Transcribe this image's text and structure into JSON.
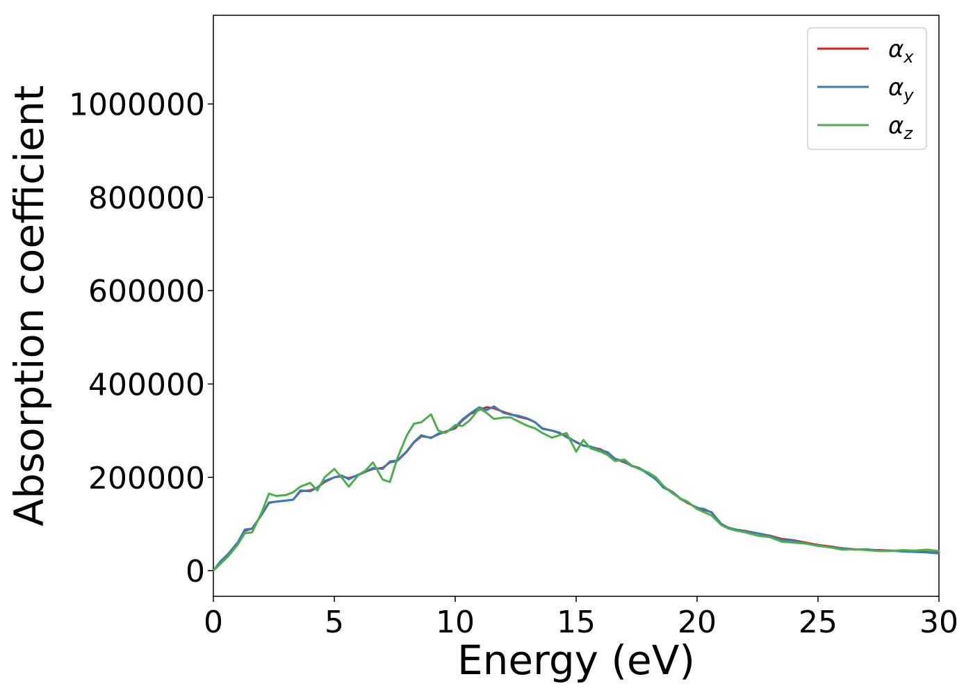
{
  "chart_data": {
    "type": "line",
    "title": "",
    "xlabel": "Energy (eV)",
    "ylabel": "Absorption coefficient",
    "xlim": [
      0,
      30
    ],
    "ylim": [
      -55000,
      1190000
    ],
    "xticks": [
      0,
      5,
      10,
      15,
      20,
      25,
      30
    ],
    "yticks": [
      0,
      200000,
      400000,
      600000,
      800000,
      1000000
    ],
    "xtick_labels": [
      "0",
      "5",
      "10",
      "15",
      "20",
      "25",
      "30"
    ],
    "ytick_labels": [
      "0",
      "200000",
      "400000",
      "600000",
      "800000",
      "1000000"
    ],
    "grid": false,
    "legend_position": "top-right",
    "series": [
      {
        "name": "α",
        "subscript": "x",
        "color": "#e41a1c",
        "x": [
          0,
          0.3,
          0.6,
          1.0,
          1.3,
          1.6,
          2.0,
          2.3,
          2.6,
          3.0,
          3.3,
          3.6,
          4.0,
          4.3,
          4.6,
          5.0,
          5.3,
          5.6,
          6.0,
          6.3,
          6.6,
          7.0,
          7.3,
          7.6,
          8.0,
          8.3,
          8.6,
          9.0,
          9.3,
          9.6,
          10.0,
          10.3,
          10.6,
          11.0,
          11.3,
          11.6,
          12.0,
          12.3,
          12.6,
          13.0,
          13.3,
          13.6,
          14.0,
          14.3,
          14.6,
          15.0,
          15.3,
          15.6,
          16.0,
          16.3,
          16.6,
          17.0,
          17.3,
          17.6,
          18.0,
          18.3,
          18.6,
          19.0,
          19.3,
          19.6,
          20.0,
          20.3,
          20.6,
          21.0,
          21.3,
          21.6,
          22.0,
          22.5,
          23.0,
          23.5,
          24.0,
          24.5,
          25.0,
          25.5,
          26.0,
          26.5,
          27.0,
          27.5,
          28.0,
          28.5,
          29.0,
          29.5,
          30.0
        ],
        "y": [
          0,
          20000,
          35000,
          60000,
          85000,
          90000,
          120000,
          145000,
          148000,
          150000,
          152000,
          170000,
          172000,
          178000,
          190000,
          200000,
          202000,
          198000,
          205000,
          212000,
          218000,
          220000,
          232000,
          235000,
          255000,
          275000,
          288000,
          285000,
          292000,
          298000,
          305000,
          322000,
          335000,
          345000,
          350000,
          348000,
          340000,
          335000,
          330000,
          325000,
          318000,
          305000,
          300000,
          295000,
          288000,
          275000,
          268000,
          265000,
          260000,
          252000,
          240000,
          232000,
          225000,
          220000,
          208000,
          195000,
          180000,
          168000,
          155000,
          145000,
          135000,
          130000,
          125000,
          100000,
          92000,
          88000,
          85000,
          80000,
          75000,
          68000,
          65000,
          60000,
          55000,
          52000,
          48000,
          46000,
          45000,
          44000,
          43000,
          42000,
          41000,
          40000,
          38000
        ]
      },
      {
        "name": "α",
        "subscript": "y",
        "color": "#377eb8",
        "x": [
          0,
          0.3,
          0.6,
          1.0,
          1.3,
          1.6,
          2.0,
          2.3,
          2.6,
          3.0,
          3.3,
          3.6,
          4.0,
          4.3,
          4.6,
          5.0,
          5.3,
          5.6,
          6.0,
          6.3,
          6.6,
          7.0,
          7.3,
          7.6,
          8.0,
          8.3,
          8.6,
          9.0,
          9.3,
          9.6,
          10.0,
          10.3,
          10.6,
          11.0,
          11.3,
          11.6,
          12.0,
          12.3,
          12.6,
          13.0,
          13.3,
          13.6,
          14.0,
          14.3,
          14.6,
          15.0,
          15.3,
          15.6,
          16.0,
          16.3,
          16.6,
          17.0,
          17.3,
          17.6,
          18.0,
          18.3,
          18.6,
          19.0,
          19.3,
          19.6,
          20.0,
          20.3,
          20.6,
          21.0,
          21.3,
          21.6,
          22.0,
          22.5,
          23.0,
          23.5,
          24.0,
          24.5,
          25.0,
          25.5,
          26.0,
          26.5,
          27.0,
          27.5,
          28.0,
          28.5,
          29.0,
          29.5,
          30.0
        ],
        "y": [
          0,
          20000,
          35000,
          60000,
          88000,
          90000,
          120000,
          146000,
          148000,
          150000,
          152000,
          172000,
          170000,
          178000,
          192000,
          200000,
          204000,
          196000,
          206000,
          212000,
          220000,
          218000,
          234000,
          236000,
          256000,
          276000,
          290000,
          284000,
          294000,
          296000,
          308000,
          324000,
          336000,
          350000,
          344000,
          352000,
          338000,
          334000,
          332000,
          326000,
          318000,
          304000,
          300000,
          296000,
          286000,
          276000,
          268000,
          266000,
          258000,
          254000,
          240000,
          234000,
          224000,
          220000,
          206000,
          196000,
          178000,
          168000,
          154000,
          146000,
          134000,
          132000,
          124000,
          100000,
          92000,
          88000,
          84000,
          80000,
          74000,
          66000,
          64000,
          58000,
          54000,
          50000,
          48000,
          45000,
          46000,
          43000,
          43000,
          41000,
          40000,
          39000,
          37000
        ]
      },
      {
        "name": "α",
        "subscript": "z",
        "color": "#4daf4a",
        "x": [
          0,
          0.3,
          0.6,
          1.0,
          1.3,
          1.6,
          2.0,
          2.3,
          2.6,
          3.0,
          3.3,
          3.6,
          4.0,
          4.3,
          4.6,
          5.0,
          5.3,
          5.6,
          6.0,
          6.3,
          6.6,
          7.0,
          7.3,
          7.6,
          8.0,
          8.3,
          8.6,
          9.0,
          9.3,
          9.6,
          10.0,
          10.3,
          10.6,
          11.0,
          11.3,
          11.6,
          12.0,
          12.3,
          12.6,
          13.0,
          13.3,
          13.6,
          14.0,
          14.3,
          14.6,
          15.0,
          15.3,
          15.6,
          16.0,
          16.3,
          16.6,
          17.0,
          17.3,
          17.6,
          18.0,
          18.3,
          18.6,
          19.0,
          19.3,
          19.6,
          20.0,
          20.3,
          20.6,
          21.0,
          21.3,
          21.6,
          22.0,
          22.5,
          23.0,
          23.5,
          24.0,
          24.5,
          25.0,
          25.5,
          26.0,
          26.5,
          27.0,
          27.5,
          28.0,
          28.5,
          29.0,
          29.5,
          30.0
        ],
        "y": [
          0,
          15000,
          30000,
          55000,
          80000,
          82000,
          125000,
          165000,
          160000,
          162000,
          168000,
          180000,
          188000,
          172000,
          200000,
          218000,
          200000,
          180000,
          205000,
          215000,
          232000,
          195000,
          190000,
          240000,
          290000,
          315000,
          318000,
          335000,
          300000,
          295000,
          312000,
          310000,
          322000,
          348000,
          338000,
          325000,
          328000,
          328000,
          320000,
          310000,
          305000,
          295000,
          285000,
          290000,
          295000,
          255000,
          280000,
          262000,
          255000,
          248000,
          235000,
          238000,
          225000,
          218000,
          210000,
          200000,
          182000,
          165000,
          155000,
          148000,
          132000,
          125000,
          118000,
          98000,
          90000,
          86000,
          82000,
          75000,
          72000,
          62000,
          60000,
          58000,
          53000,
          50000,
          45000,
          46000,
          44000,
          42000,
          42000,
          44000,
          43000,
          45000,
          42000
        ]
      }
    ]
  }
}
